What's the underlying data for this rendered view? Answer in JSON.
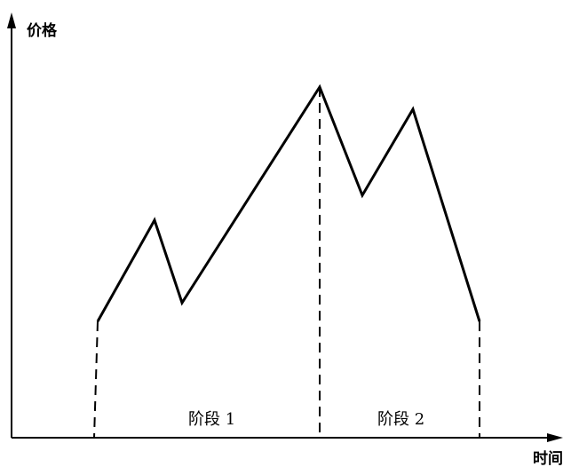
{
  "diagram": {
    "y_axis_label": "价格",
    "x_axis_label": "时间",
    "phases": [
      {
        "label": "阶段 1"
      },
      {
        "label": "阶段 2"
      }
    ],
    "line_color": "#000000",
    "background_color": "#ffffff"
  }
}
